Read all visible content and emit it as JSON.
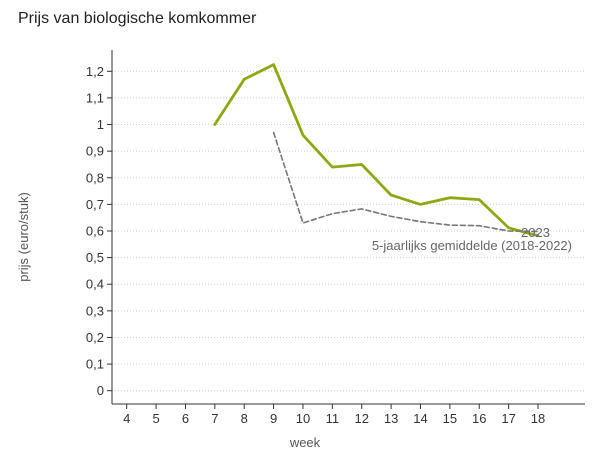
{
  "chart_data": {
    "type": "line",
    "title": "Prijs van biologische komkommer",
    "xlabel": "week",
    "ylabel": "prijs (euro/stuk)",
    "x": [
      4,
      5,
      6,
      7,
      8,
      9,
      10,
      11,
      12,
      13,
      14,
      15,
      16,
      17,
      18
    ],
    "x_tick_labels": [
      "4",
      "5",
      "6",
      "7",
      "8",
      "9",
      "10",
      "11",
      "12",
      "13",
      "14",
      "15",
      "16",
      "17",
      "18"
    ],
    "y_ticks": [
      0,
      0.1,
      0.2,
      0.3,
      0.4,
      0.5,
      0.6,
      0.7,
      0.8,
      0.9,
      1,
      1.1,
      1.2
    ],
    "y_tick_labels": [
      "0",
      "0,1",
      "0,2",
      "0,3",
      "0,4",
      "0,5",
      "0,6",
      "0,7",
      "0,8",
      "0,9",
      "1",
      "1,1",
      "1,2"
    ],
    "xlim": [
      3.5,
      19.6
    ],
    "ylim": [
      -0.05,
      1.28
    ],
    "grid": "horizontal dotted",
    "series": [
      {
        "name": "2023",
        "style": "solid",
        "color": "#8aaa14",
        "x": [
          7,
          8,
          9,
          10,
          11,
          12,
          13,
          14,
          15,
          16,
          17,
          18
        ],
        "values": [
          1.0,
          1.17,
          1.225,
          0.96,
          0.84,
          0.85,
          0.735,
          0.7,
          0.725,
          0.718,
          0.612,
          0.582
        ]
      },
      {
        "name": "5-jaarlijks gemiddelde (2018-2022)",
        "style": "dashed",
        "color": "#777777",
        "x": [
          9,
          10,
          11,
          12,
          13,
          14,
          15,
          16,
          17,
          18
        ],
        "values": [
          0.97,
          0.63,
          0.665,
          0.683,
          0.655,
          0.635,
          0.622,
          0.62,
          0.6,
          0.598
        ]
      }
    ]
  }
}
